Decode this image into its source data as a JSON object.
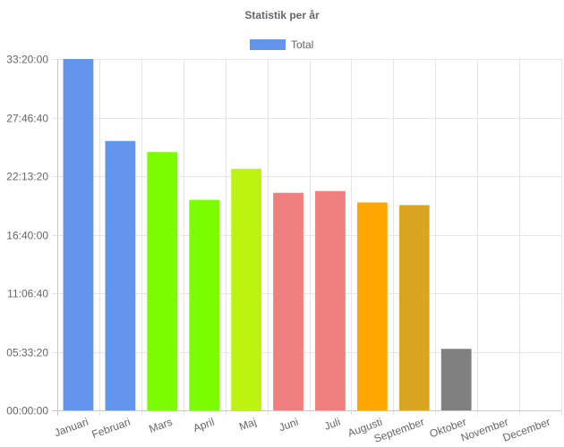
{
  "chart_data": {
    "type": "bar",
    "title": "Statistik per år",
    "legend": {
      "position": "top",
      "entries": [
        {
          "label": "Total",
          "color": "#6495ed"
        }
      ]
    },
    "categories": [
      "Januari",
      "Februari",
      "Mars",
      "April",
      "Maj",
      "Juni",
      "Juli",
      "Augusti",
      "September",
      "Oktober",
      "November",
      "December"
    ],
    "series": [
      {
        "name": "Total",
        "values_seconds": [
          120000,
          92000,
          88200,
          71900,
          82500,
          74300,
          74900,
          71000,
          70100,
          21000,
          0,
          0
        ],
        "colors": [
          "#6495ed",
          "#6495ed",
          "#7cfc00",
          "#7cfc00",
          "#bef211",
          "#f08080",
          "#f08080",
          "#ffa500",
          "#daa520",
          "#808080",
          "#808080",
          "#808080"
        ]
      }
    ],
    "y_axis": {
      "format": "hh:mm:ss",
      "ylim": [
        0,
        120000
      ],
      "tick_step": 20000,
      "tick_labels": [
        "00:00:00",
        "05:33:20",
        "11:06:40",
        "16:40:00",
        "22:13:20",
        "27:46:40",
        "33:20:00"
      ]
    },
    "grid": true
  }
}
